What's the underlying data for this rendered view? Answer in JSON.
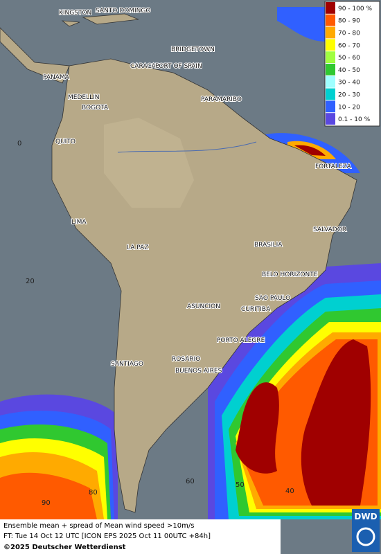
{
  "map": {
    "cities": [
      "KINGSTON",
      "SANTO DOMINGO",
      "BRIDGETOWN",
      "CARACAS",
      "PORT OF SPAIN",
      "PANAMA",
      "MEDELLIN",
      "BOGOTA",
      "PARAMARIBO",
      "QUITO",
      "FORTALEZA",
      "LIMA",
      "SALVADOR",
      "LA PAZ",
      "BRASILIA",
      "BELO HORIZONTE",
      "SAO PAULO",
      "ASUNCION",
      "CURITIBA",
      "PORTO ALEGRE",
      "ROSARIO",
      "SANTIAGO",
      "BUENOS AIRES"
    ],
    "graticule_labels": [
      "0",
      "20",
      "40",
      "50",
      "60",
      "80",
      "90"
    ]
  },
  "legend": [
    {
      "label": "90 - 100 %",
      "color": "#a00000"
    },
    {
      "label": "80 - 90",
      "color": "#ff5a00"
    },
    {
      "label": "70 - 80",
      "color": "#ffaa00"
    },
    {
      "label": "60 - 70",
      "color": "#ffff00"
    },
    {
      "label": "50 - 60",
      "color": "#a0ff40"
    },
    {
      "label": "40 - 50",
      "color": "#30c830"
    },
    {
      "label": "30 - 40",
      "color": "#a0ffff"
    },
    {
      "label": "20 - 30",
      "color": "#00d0d0"
    },
    {
      "label": "10 - 20",
      "color": "#3060ff"
    },
    {
      "label": "0.1 - 10 %",
      "color": "#5a48e0"
    }
  ],
  "footer": {
    "line1": "Ensemble mean + spread of Mean wind speed >10m/s",
    "line2": "FT: Tue 14 Oct 12 UTC [ICON EPS 2025 Oct 11 00UTC +84h]",
    "copyright": "©2025 Deutscher Wetterdienst"
  },
  "logo": "DWD"
}
